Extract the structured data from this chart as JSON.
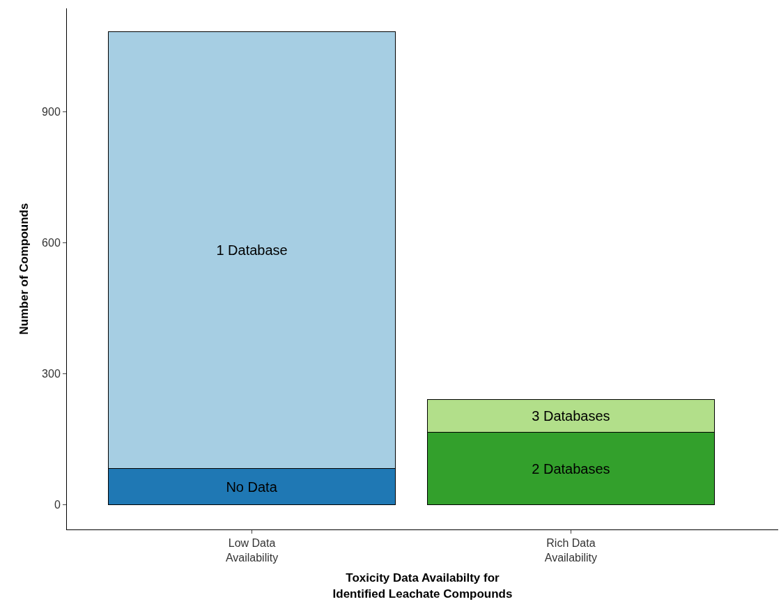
{
  "chart_data": {
    "type": "bar",
    "stacked": true,
    "xlabel": "Toxicity Data Availabilty for\nIdentified Leachate Compounds",
    "ylabel": "Number of Compounds",
    "categories": [
      "Low Data\nAvailability",
      "Rich Data\nAvailability"
    ],
    "series": [
      {
        "name": "No Data",
        "color": "#1f78b4",
        "values": [
          83,
          null
        ]
      },
      {
        "name": "1 Database",
        "color": "#a6cee3",
        "values": [
          999,
          null
        ]
      },
      {
        "name": "2 Databases",
        "color": "#33a02c",
        "values": [
          null,
          166
        ]
      },
      {
        "name": "3 Databases",
        "color": "#b2df8a",
        "values": [
          null,
          76
        ]
      }
    ],
    "ylim": [
      -56,
      1136
    ],
    "yticks": [
      0,
      300,
      600,
      900
    ],
    "legend": false
  }
}
